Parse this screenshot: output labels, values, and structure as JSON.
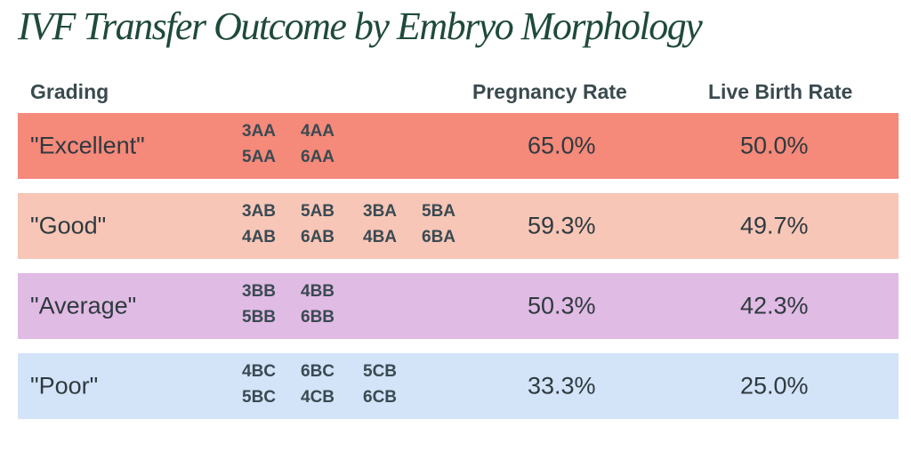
{
  "chart_data": {
    "type": "table",
    "title": "IVF Transfer Outcome by Embryo Morphology",
    "columns": [
      "Grading",
      "Pregnancy Rate",
      "Live Birth Rate"
    ],
    "rows": [
      {
        "grade": "\"Excellent\"",
        "codes": [
          "3AA",
          "4AA",
          "",
          "",
          "5AA",
          "6AA",
          "",
          ""
        ],
        "pregnancy_rate": "65.0%",
        "live_birth_rate": "50.0%",
        "color": "#f5897a"
      },
      {
        "grade": "\"Good\"",
        "codes": [
          "3AB",
          "5AB",
          "3BA",
          "5BA",
          "4AB",
          "6AB",
          "4BA",
          "6BA"
        ],
        "pregnancy_rate": "59.3%",
        "live_birth_rate": "49.7%",
        "color": "#f7c6b7"
      },
      {
        "grade": "\"Average\"",
        "codes": [
          "3BB",
          "4BB",
          "",
          "",
          "5BB",
          "6BB",
          "",
          ""
        ],
        "pregnancy_rate": "50.3%",
        "live_birth_rate": "42.3%",
        "color": "#e0bbe4"
      },
      {
        "grade": "\"Poor\"",
        "codes": [
          "4BC",
          "6BC",
          "5CB",
          "",
          "5BC",
          "4CB",
          "6CB",
          ""
        ],
        "pregnancy_rate": "33.3%",
        "live_birth_rate": "25.0%",
        "color": "#d3e3f8"
      }
    ]
  }
}
